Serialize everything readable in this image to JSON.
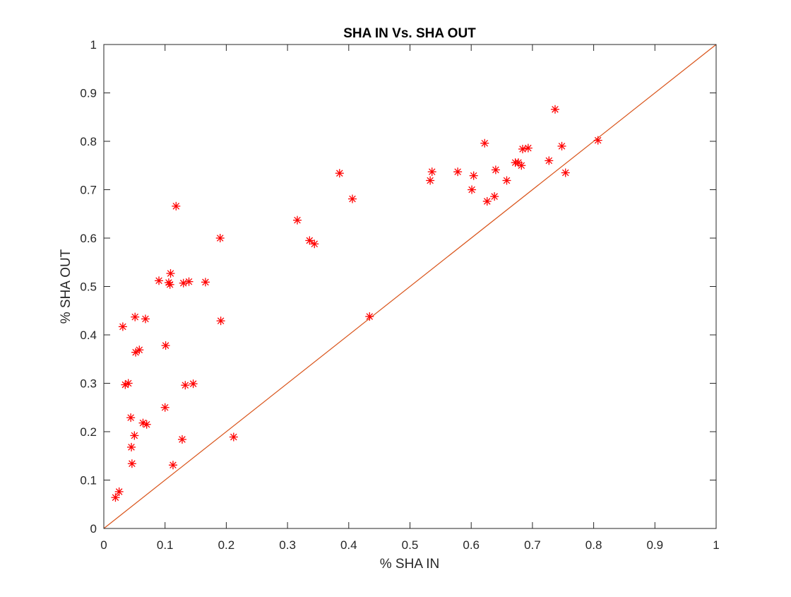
{
  "chart_data": {
    "type": "scatter",
    "title": "SHA IN Vs. SHA OUT",
    "xlabel": "% SHA IN",
    "ylabel": "% SHA OUT",
    "xlim": [
      0,
      1
    ],
    "ylim": [
      0,
      1
    ],
    "xticks": [
      "0",
      "0.1",
      "0.2",
      "0.3",
      "0.4",
      "0.5",
      "0.6",
      "0.7",
      "0.8",
      "0.9",
      "1"
    ],
    "yticks": [
      "0",
      "0.1",
      "0.2",
      "0.3",
      "0.4",
      "0.5",
      "0.6",
      "0.7",
      "0.8",
      "0.9",
      "1"
    ],
    "grid": false,
    "legend": "none",
    "series": [
      {
        "marker": "asterisk",
        "color": "#ff0000",
        "points": [
          [
            0.019,
            0.064
          ],
          [
            0.025,
            0.076
          ],
          [
            0.031,
            0.417
          ],
          [
            0.035,
            0.297
          ],
          [
            0.04,
            0.3
          ],
          [
            0.044,
            0.229
          ],
          [
            0.045,
            0.168
          ],
          [
            0.046,
            0.134
          ],
          [
            0.05,
            0.192
          ],
          [
            0.051,
            0.437
          ],
          [
            0.052,
            0.364
          ],
          [
            0.058,
            0.369
          ],
          [
            0.064,
            0.218
          ],
          [
            0.068,
            0.433
          ],
          [
            0.07,
            0.215
          ],
          [
            0.09,
            0.512
          ],
          [
            0.1,
            0.25
          ],
          [
            0.101,
            0.378
          ],
          [
            0.106,
            0.508
          ],
          [
            0.108,
            0.504
          ],
          [
            0.109,
            0.527
          ],
          [
            0.113,
            0.131
          ],
          [
            0.118,
            0.666
          ],
          [
            0.128,
            0.184
          ],
          [
            0.13,
            0.507
          ],
          [
            0.133,
            0.296
          ],
          [
            0.139,
            0.51
          ],
          [
            0.146,
            0.299
          ],
          [
            0.166,
            0.509
          ],
          [
            0.19,
            0.6
          ],
          [
            0.191,
            0.429
          ],
          [
            0.212,
            0.189
          ],
          [
            0.316,
            0.637
          ],
          [
            0.336,
            0.595
          ],
          [
            0.344,
            0.588
          ],
          [
            0.385,
            0.734
          ],
          [
            0.406,
            0.681
          ],
          [
            0.434,
            0.438
          ],
          [
            0.533,
            0.719
          ],
          [
            0.536,
            0.737
          ],
          [
            0.578,
            0.737
          ],
          [
            0.601,
            0.7
          ],
          [
            0.604,
            0.729
          ],
          [
            0.622,
            0.796
          ],
          [
            0.626,
            0.676
          ],
          [
            0.638,
            0.686
          ],
          [
            0.64,
            0.741
          ],
          [
            0.658,
            0.719
          ],
          [
            0.672,
            0.756
          ],
          [
            0.677,
            0.756
          ],
          [
            0.682,
            0.75
          ],
          [
            0.684,
            0.784
          ],
          [
            0.693,
            0.786
          ],
          [
            0.727,
            0.76
          ],
          [
            0.737,
            0.866
          ],
          [
            0.748,
            0.79
          ],
          [
            0.754,
            0.735
          ],
          [
            0.807,
            0.802
          ]
        ]
      },
      {
        "type": "line",
        "color": "#d95319",
        "points": [
          [
            0,
            0
          ],
          [
            1,
            1
          ]
        ]
      }
    ]
  }
}
